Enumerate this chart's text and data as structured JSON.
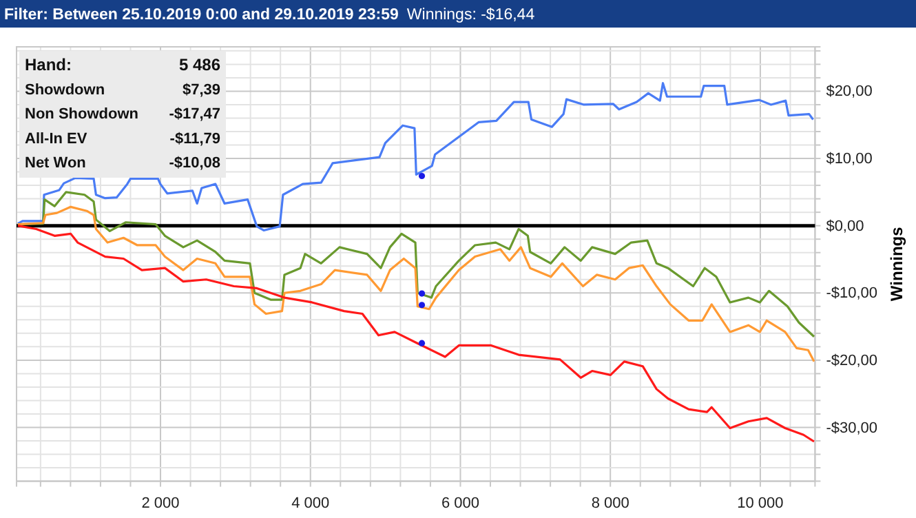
{
  "chart_data": {
    "type": "line",
    "title": "Filter: Between 25.10.2019 0:00 and 29.10.2019 23:59",
    "subtitle": "Winnings: -$16,44",
    "ylabel": "Winnings",
    "annotations": [
      "Hand:",
      "5 486",
      "Showdown",
      "$7,39",
      "Non Showdown",
      "-$17,47",
      "All-In EV",
      "-$11,79",
      "Net Won",
      "-$10,08"
    ],
    "xlim": [
      80,
      10730
    ],
    "ylim": [
      -38,
      26.6
    ],
    "xticks": [
      {
        "value": 400,
        "label": null
      },
      {
        "value": 800,
        "label": null
      },
      {
        "value": 1200,
        "label": null
      },
      {
        "value": 1600,
        "label": null
      },
      {
        "value": 2000,
        "label": "2 000"
      },
      {
        "value": 2400,
        "label": null
      },
      {
        "value": 2800,
        "label": null
      },
      {
        "value": 3200,
        "label": null
      },
      {
        "value": 3600,
        "label": null
      },
      {
        "value": 4000,
        "label": "4 000"
      },
      {
        "value": 4400,
        "label": null
      },
      {
        "value": 4800,
        "label": null
      },
      {
        "value": 5200,
        "label": null
      },
      {
        "value": 5600,
        "label": null
      },
      {
        "value": 6000,
        "label": "6 000"
      },
      {
        "value": 6400,
        "label": null
      },
      {
        "value": 6800,
        "label": null
      },
      {
        "value": 7200,
        "label": null
      },
      {
        "value": 7600,
        "label": null
      },
      {
        "value": 8000,
        "label": "8 000"
      },
      {
        "value": 8400,
        "label": null
      },
      {
        "value": 8800,
        "label": null
      },
      {
        "value": 9200,
        "label": null
      },
      {
        "value": 9600,
        "label": null
      },
      {
        "value": 10000,
        "label": "10 000"
      },
      {
        "value": 10400,
        "label": null
      }
    ],
    "yticks": [
      {
        "value": -36,
        "label": null
      },
      {
        "value": -34,
        "label": null
      },
      {
        "value": -32,
        "label": null
      },
      {
        "value": -30,
        "label": "-$30,00"
      },
      {
        "value": -28,
        "label": null
      },
      {
        "value": -26,
        "label": null
      },
      {
        "value": -24,
        "label": null
      },
      {
        "value": -22,
        "label": null
      },
      {
        "value": -20,
        "label": "-$20,00"
      },
      {
        "value": -18,
        "label": null
      },
      {
        "value": -16,
        "label": null
      },
      {
        "value": -14,
        "label": null
      },
      {
        "value": -12,
        "label": null
      },
      {
        "value": -10,
        "label": "-$10,00"
      },
      {
        "value": -8,
        "label": null
      },
      {
        "value": -6,
        "label": null
      },
      {
        "value": -4,
        "label": null
      },
      {
        "value": -2,
        "label": null
      },
      {
        "value": 0,
        "label": "$0,00"
      },
      {
        "value": 2,
        "label": null
      },
      {
        "value": 4,
        "label": null
      },
      {
        "value": 6,
        "label": null
      },
      {
        "value": 8,
        "label": null
      },
      {
        "value": 10,
        "label": "$10,00"
      },
      {
        "value": 12,
        "label": null
      },
      {
        "value": 14,
        "label": null
      },
      {
        "value": 16,
        "label": null
      },
      {
        "value": 18,
        "label": null
      },
      {
        "value": 20,
        "label": "$20,00"
      },
      {
        "value": 22,
        "label": null
      },
      {
        "value": 24,
        "label": null
      },
      {
        "value": 26,
        "label": null
      }
    ],
    "grid": true,
    "ref_lines": [
      {
        "axis": "y",
        "value": 0,
        "color": "#000000"
      }
    ],
    "series": [
      {
        "color": "#4a7cf5",
        "x": [
          98,
          160,
          435,
          447,
          650,
          711,
          864,
          1109,
          1140,
          1262,
          1415,
          1557,
          1600,
          1967,
          1998,
          2090,
          2426,
          2488,
          2549,
          2733,
          2855,
          3162,
          3285,
          3377,
          3590,
          3634,
          3897,
          4142,
          4265,
          4296,
          4921,
          4998,
          5232,
          5388,
          5411,
          5621,
          5662,
          6246,
          6480,
          6713,
          6907,
          6947,
          7221,
          7375,
          7415,
          7647,
          8039,
          8116,
          8351,
          8506,
          8662,
          8701,
          8756,
          9208,
          9246,
          9520,
          9559,
          9987,
          10143,
          10338,
          10377,
          10651,
          10704
        ],
        "values": [
          0.3,
          0.7,
          0.7,
          4.6,
          5.3,
          6.3,
          7.1,
          7.0,
          4.6,
          4.1,
          4.2,
          6.2,
          7.0,
          7.0,
          6.2,
          4.8,
          5.2,
          3.3,
          5.6,
          6.2,
          3.3,
          3.9,
          -0.1,
          -0.7,
          -0.1,
          4.6,
          6.2,
          6.4,
          8.7,
          9.3,
          10.2,
          12.3,
          14.9,
          14.5,
          7.6,
          8.9,
          10.6,
          15.4,
          15.6,
          18.4,
          18.4,
          15.8,
          14.7,
          16.6,
          18.8,
          18.0,
          18.1,
          17.3,
          18.4,
          19.7,
          18.6,
          21.2,
          19.2,
          19.2,
          20.8,
          20.8,
          18.0,
          18.7,
          18.0,
          18.6,
          16.4,
          16.6,
          15.8
        ]
      },
      {
        "color": "#6a9a2e",
        "x": [
          98,
          435,
          454,
          588,
          741,
          987,
          1109,
          1140,
          1324,
          1538,
          1936,
          2059,
          2304,
          2488,
          2733,
          2855,
          3193,
          3254,
          3469,
          3621,
          3653,
          3866,
          3928,
          4142,
          4388,
          4755,
          4939,
          5061,
          5215,
          5399,
          5429,
          5613,
          5674,
          5980,
          6195,
          6471,
          6654,
          6777,
          6899,
          6930,
          7206,
          7390,
          7605,
          7757,
          8064,
          8278,
          8493,
          8616,
          8768,
          9105,
          9259,
          9412,
          9596,
          9841,
          9994,
          10116,
          10362,
          10515,
          10717
        ],
        "values": [
          0.2,
          0.3,
          3.9,
          2.9,
          5.0,
          4.6,
          3.6,
          0.9,
          -0.8,
          0.5,
          0.2,
          -1.5,
          -3.2,
          -2.2,
          -3.9,
          -5.2,
          -5.6,
          -10.0,
          -11.0,
          -11.0,
          -7.3,
          -6.3,
          -4.2,
          -5.6,
          -3.2,
          -4.2,
          -6.3,
          -3.2,
          -1.2,
          -2.5,
          -10.0,
          -10.7,
          -9.0,
          -5.2,
          -2.9,
          -2.5,
          -3.5,
          -0.5,
          -1.5,
          -3.9,
          -5.6,
          -3.2,
          -5.2,
          -3.2,
          -4.2,
          -2.5,
          -2.2,
          -5.6,
          -6.3,
          -9.0,
          -6.3,
          -7.6,
          -11.4,
          -10.7,
          -11.4,
          -9.7,
          -12.0,
          -14.4,
          -16.5
        ]
      },
      {
        "color": "#ff9a33",
        "x": [
          98,
          435,
          466,
          619,
          803,
          1017,
          1109,
          1140,
          1293,
          1507,
          1691,
          1936,
          2059,
          2304,
          2488,
          2733,
          2855,
          3193,
          3254,
          3407,
          3621,
          3653,
          3866,
          4142,
          4326,
          4755,
          4939,
          5061,
          5245,
          5399,
          5429,
          5583,
          5674,
          5980,
          6195,
          6532,
          6654,
          6807,
          6930,
          7206,
          7359,
          7635,
          7819,
          8064,
          8248,
          8432,
          8616,
          8800,
          9044,
          9228,
          9351,
          9596,
          9841,
          9994,
          10086,
          10331,
          10484,
          10638,
          10717
        ],
        "values": [
          0.2,
          0.4,
          1.6,
          1.9,
          2.8,
          2.2,
          1.6,
          -0.5,
          -2.5,
          -1.8,
          -2.9,
          -2.9,
          -4.6,
          -6.6,
          -4.9,
          -5.6,
          -7.6,
          -7.6,
          -11.7,
          -13.1,
          -12.7,
          -10.0,
          -9.7,
          -8.7,
          -6.6,
          -7.3,
          -9.7,
          -6.6,
          -4.9,
          -6.3,
          -12.0,
          -12.4,
          -10.7,
          -6.6,
          -4.6,
          -3.5,
          -5.2,
          -3.2,
          -6.3,
          -7.6,
          -5.6,
          -9.0,
          -7.3,
          -8.0,
          -6.3,
          -5.9,
          -9.0,
          -11.7,
          -14.1,
          -14.1,
          -11.7,
          -15.8,
          -14.8,
          -15.8,
          -14.1,
          -15.8,
          -18.2,
          -18.5,
          -20.2
        ]
      },
      {
        "color": "#ff1a1a",
        "x": [
          98,
          343,
          588,
          803,
          895,
          1262,
          1507,
          1752,
          2059,
          2304,
          2610,
          2978,
          3285,
          3653,
          4020,
          4449,
          4693,
          4908,
          5123,
          5429,
          5796,
          5980,
          6410,
          6777,
          7329,
          7605,
          7757,
          8002,
          8186,
          8432,
          8616,
          8768,
          9044,
          9289,
          9351,
          9596,
          9841,
          10086,
          10331,
          10576,
          10717
        ],
        "values": [
          0,
          -0.5,
          -1.5,
          -1.2,
          -2.5,
          -4.6,
          -4.9,
          -6.6,
          -6.3,
          -8.3,
          -8.0,
          -9.0,
          -9.3,
          -10.7,
          -11.4,
          -12.7,
          -13.1,
          -16.3,
          -15.8,
          -17.5,
          -19.5,
          -17.8,
          -17.8,
          -19.2,
          -19.9,
          -22.6,
          -21.6,
          -22.2,
          -20.2,
          -20.9,
          -24.3,
          -25.7,
          -27.3,
          -27.7,
          -27.0,
          -30.1,
          -29.1,
          -28.6,
          -30.1,
          -31.1,
          -32.1
        ]
      },
      {
        "type": "scatter",
        "marker": "circle",
        "color": "#1a1ae6",
        "x": [
          5486,
          5486,
          5486,
          5486
        ],
        "values": [
          7.39,
          -10.08,
          -11.79,
          -17.47
        ]
      }
    ]
  }
}
